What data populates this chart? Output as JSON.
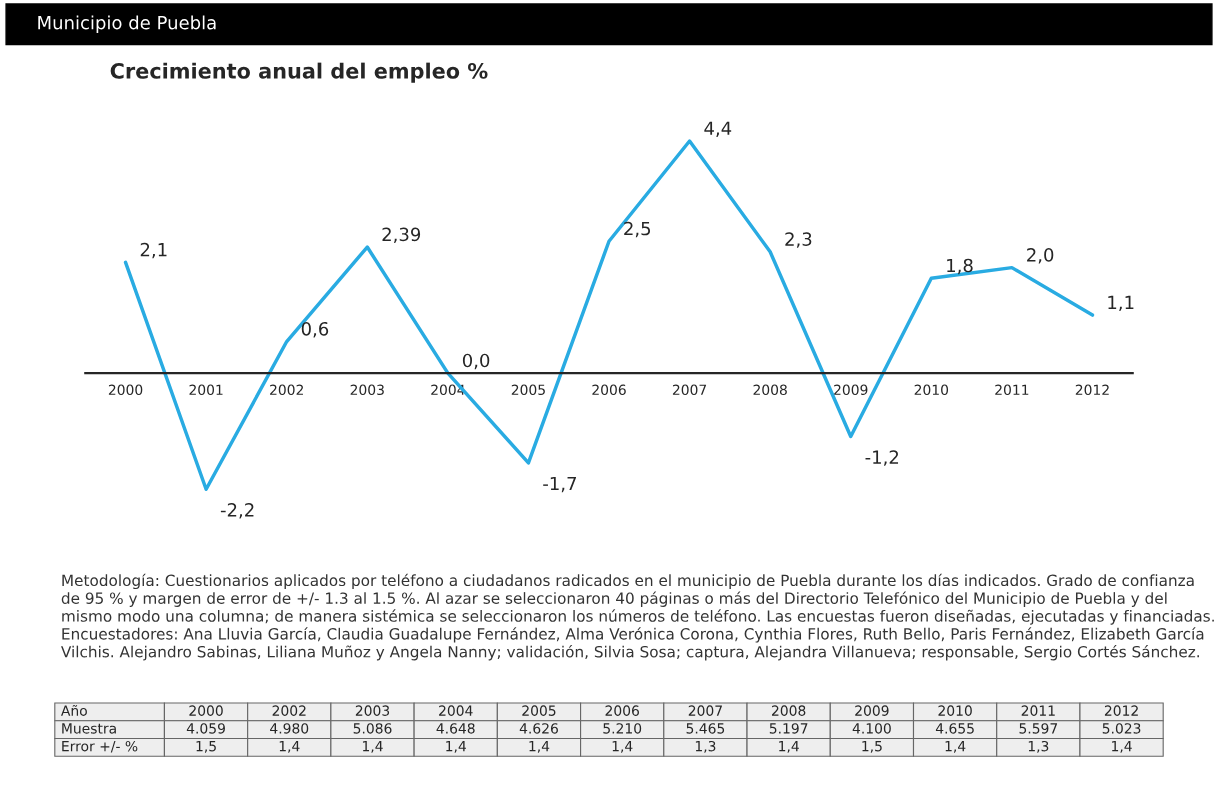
{
  "chart_data": {
    "type": "line",
    "title": "Municipio de Puebla",
    "subtitle": "Crecimiento anual del empleo %",
    "categories": [
      "2000",
      "2001",
      "2002",
      "2003",
      "2004",
      "2005",
      "2006",
      "2007",
      "2008",
      "2009",
      "2010",
      "2011",
      "2012"
    ],
    "series": [
      {
        "color": "#29abe2",
        "values": [
          2.1,
          -2.2,
          0.6,
          2.39,
          0.0,
          -1.7,
          2.5,
          4.4,
          2.3,
          -1.2,
          1.8,
          2.0,
          1.1
        ],
        "value_labels": [
          "2,1",
          "-2,2",
          "0,6",
          "2,39",
          "0,0",
          "-1,7",
          "2,5",
          "4,4",
          "2,3",
          "-1,2",
          "1,8",
          "2,0",
          "1,1"
        ]
      }
    ],
    "grid": false,
    "legend": false,
    "marker": "none",
    "line_style": "solid",
    "annotations": [
      "Metodología: Cuestionarios aplicados por teléfono a ciudadanos radicados en el municipio de Puebla durante los días indicados. Grado de confianza de 95 % y margen de error de +/- 1.3 al 1.5 %. Al azar se seleccionaron 40 páginas o más del Directorio Telefónico del Municipio de Puebla y del mismo modo una columna; de manera sistémica se seleccionaron los números de teléfono. Las encuestas fueron diseñadas, ejecutadas y financiadas. Encuestadores: Ana Lluvia García, Claudia Guadalupe Fernández, Alma Verónica Corona, Cynthia Flores, Ruth Bello, Paris Fernández, Elizabeth García Vilchis. Alejandro Sabinas, Liliana Muñoz y Angela Nanny; validación, Silvia Sosa; captura, Alejandra Villanueva; responsable, Sergio Cortés Sánchez.",
      "Año",
      "2000",
      "2002",
      "2003",
      "2004",
      "2005",
      "2006",
      "2007",
      "2008",
      "2009",
      "2010",
      "2011",
      "2012",
      "Muestra",
      "4.059",
      "4.980",
      "5.086",
      "4.648",
      "4.626",
      "5.210",
      "5.465",
      "5.197",
      "4.100",
      "4.655",
      "5.597",
      "5.023",
      "Error +/- %",
      "1,5",
      "1,4",
      "1,4",
      "1,4",
      "1,4",
      "1,4",
      "1,3",
      "1,4",
      "1,5",
      "1,4",
      "1,3",
      "1,4"
    ]
  }
}
